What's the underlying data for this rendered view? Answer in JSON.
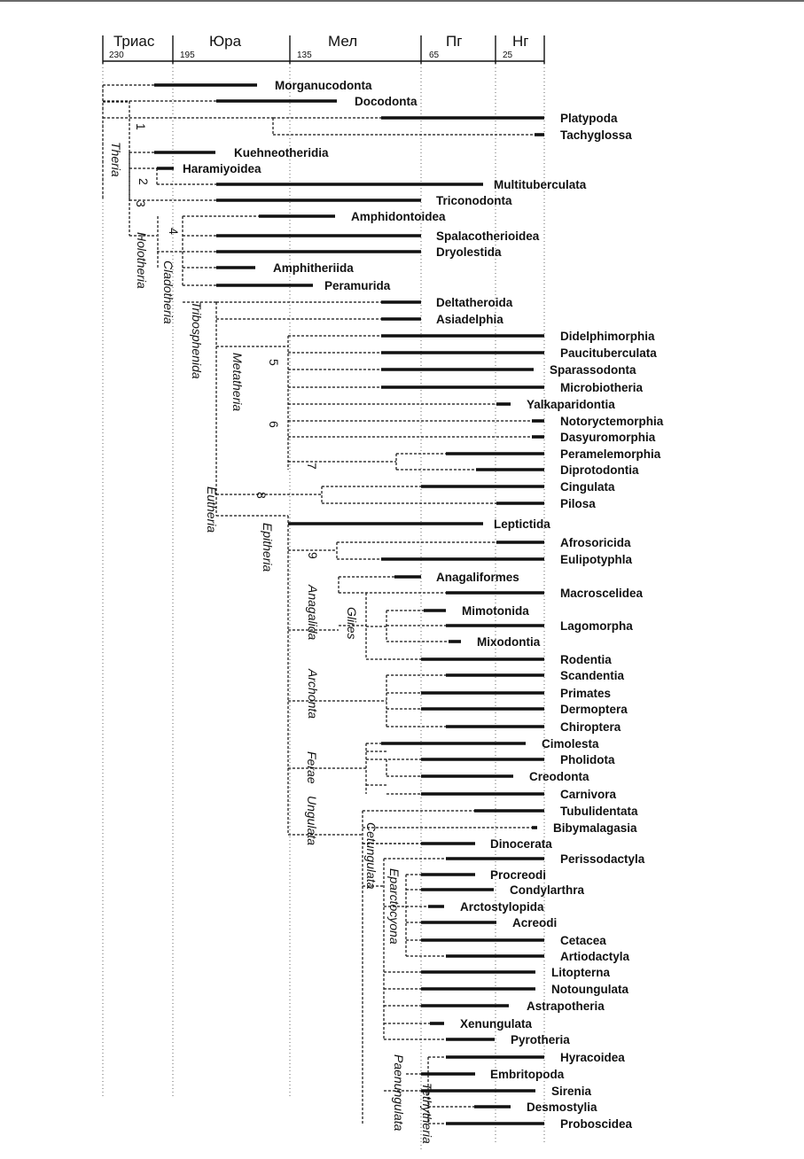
{
  "periods": [
    {
      "name": "Триас",
      "start_label": "230"
    },
    {
      "name": "Юра",
      "start_label": "195"
    },
    {
      "name": "Мел",
      "start_label": "135"
    },
    {
      "name": "Пг",
      "start_label": "65"
    },
    {
      "name": "Нг",
      "start_label": "25"
    }
  ],
  "node_numbers": [
    "1",
    "2",
    "3",
    "4",
    "5",
    "6",
    "7",
    "8",
    "9"
  ],
  "clades": [
    "Theria",
    "Holotheria",
    "Cladotheria",
    "Tribosphenida",
    "Metatheria",
    "Eutheria",
    "Epitheria",
    "Anagalida",
    "Glires",
    "Archonta",
    "Ferae",
    "Ungulata",
    "Cetungulata",
    "Eparctocyona",
    "Paenungulata",
    "Tethytheria"
  ],
  "taxa": [
    "Morganucodonta",
    "Docodonta",
    "Platypoda",
    "Tachyglossa",
    "Kuehneotheridia",
    "Haramiyoidea",
    "Multituberculata",
    "Triconodonta",
    "Amphidontoidea",
    "Spalacotherioidea",
    "Dryolestida",
    "Amphitheriida",
    "Peramurida",
    "Deltatheroida",
    "Asiadelphia",
    "Didelphimorphia",
    "Paucituberculata",
    "Sparassodonta",
    "Microbiotheria",
    "Yalkaparidontia",
    "Notoryctemorphia",
    "Dasyuromorphia",
    "Peramelemorphia",
    "Diprotodontia",
    "Cingulata",
    "Pilosa",
    "Leptictida",
    "Afrosoricida",
    "Eulipotyphla",
    "Anagaliformes",
    "Macroscelidea",
    "Mimotonida",
    "Lagomorpha",
    "Mixodontia",
    "Rodentia",
    "Scandentia",
    "Primates",
    "Dermoptera",
    "Chiroptera",
    "Cimolesta",
    "Pholidota",
    "Creodonta",
    "Carnivora",
    "Tubulidentata",
    "Bibymalagasia",
    "Dinocerata",
    "Perissodactyla",
    "Procreodi",
    "Condylarthra",
    "Arctostylopida",
    "Acreodi",
    "Cetacea",
    "Artiodactyla",
    "Litopterna",
    "Notoungulata",
    "Astrapotheria",
    "Xenungulata",
    "Pyrotheria",
    "Hyracoidea",
    "Embritopoda",
    "Sirenia",
    "Desmostylia",
    "Proboscidea"
  ],
  "colors": {
    "line": "#111111",
    "background": "#ffffff"
  }
}
